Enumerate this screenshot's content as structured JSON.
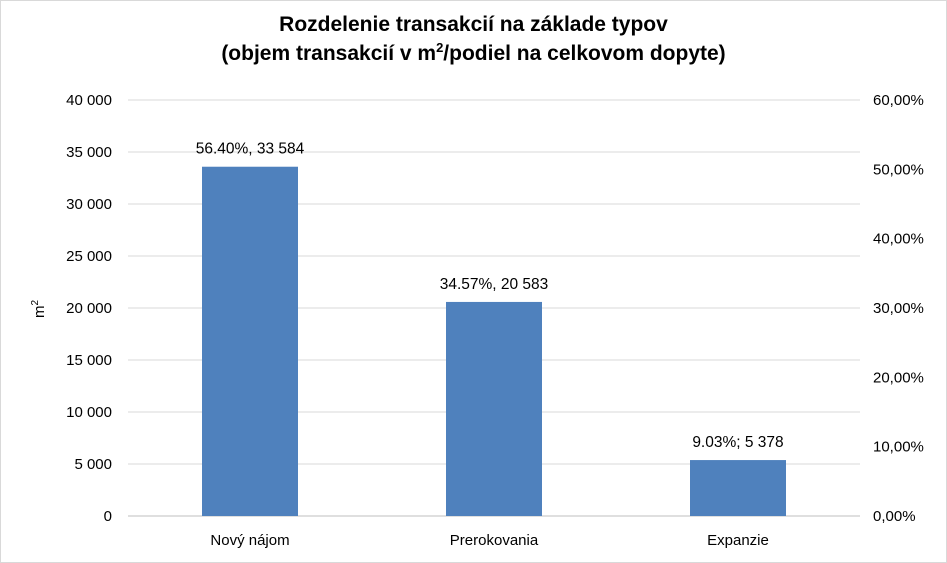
{
  "chart_data": {
    "type": "bar",
    "title_line1": "Rozdelenie transakcií na základe typov",
    "title_line2_pre": "(objem transakcií v m",
    "title_line2_sup": "2",
    "title_line2_post": "/podiel na celkovom dopyte)",
    "ylabel": "m",
    "ylabel_sup": "2",
    "categories": [
      "Nový nájom",
      "Prerokovania",
      "Expanzie"
    ],
    "values": [
      33584,
      20583,
      5378
    ],
    "data_labels": [
      "56.40%, 33 584",
      "34.57%, 20 583",
      "9.03%; 5 378"
    ],
    "ylim": [
      0,
      40000
    ],
    "y_ticks": [
      "0",
      "5 000",
      "10 000",
      "15 000",
      "20 000",
      "25 000",
      "30 000",
      "35 000",
      "40 000"
    ],
    "y2lim": [
      0,
      60
    ],
    "y2_ticks": [
      "0,00%",
      "10,00%",
      "20,00%",
      "30,00%",
      "40,00%",
      "50,00%",
      "60,00%"
    ],
    "grid": true,
    "bar_color": "#4f81bd",
    "grid_color": "#d9d9d9"
  }
}
